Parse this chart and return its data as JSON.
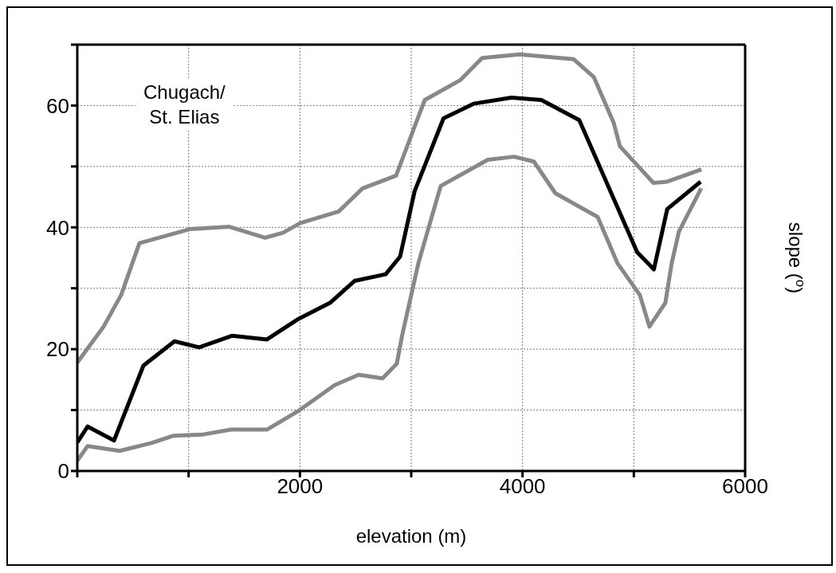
{
  "chart_data": {
    "type": "line",
    "xlabel": "elevation (m)",
    "ylabel": "slope ($^{o}$)",
    "annotations": [
      "Chugach/\nSt. Elias"
    ],
    "xlim": [
      0,
      6000
    ],
    "xticks": [
      {
        "value": 0,
        "label": null
      },
      {
        "value": 1000,
        "label": null
      },
      2000,
      {
        "value": 3000,
        "label": null
      },
      4000,
      {
        "value": 5000,
        "label": null
      },
      6000
    ],
    "ylim": [
      0,
      70
    ],
    "yticks": [
      0,
      {
        "value": 10,
        "label": null
      },
      20,
      {
        "value": 30,
        "label": null
      },
      40,
      {
        "value": 50,
        "label": null
      },
      60,
      {
        "value": 70,
        "label": null
      }
    ],
    "grid": true,
    "legend": false,
    "marker": "none",
    "line_style": "solid",
    "series": [
      {
        "color": "#888888",
        "x": [
          0,
          236,
          394,
          558,
          1009,
          1367,
          1689,
          1847,
          2004,
          2348,
          2563,
          2864,
          3121,
          3443,
          3637,
          3973,
          4460,
          4640,
          4820,
          4875,
          5176,
          5300,
          5607
        ],
        "values": [
          17.8,
          23.7,
          28.9,
          37.4,
          39.7,
          40.1,
          38.3,
          39.1,
          40.7,
          42.6,
          46.4,
          48.5,
          60.9,
          64.2,
          67.8,
          68.4,
          67.6,
          64.7,
          57.1,
          53.3,
          47.3,
          47.5,
          49.5
        ]
      },
      {
        "color": "#888888",
        "x": [
          0,
          93,
          380,
          666,
          866,
          1131,
          1382,
          1704,
          1990,
          2312,
          2527,
          2742,
          2870,
          2920,
          3064,
          3265,
          3687,
          3923,
          4102,
          4295,
          4675,
          4853,
          5054,
          5140,
          5283,
          5340,
          5405,
          5605
        ],
        "values": [
          1.7,
          4.1,
          3.3,
          4.6,
          5.8,
          6,
          6.8,
          6.8,
          9.9,
          14.1,
          15.8,
          15.2,
          17.6,
          22.4,
          34.1,
          46.8,
          51.1,
          51.6,
          50.8,
          45.6,
          41.7,
          34.1,
          28.9,
          23.7,
          27.6,
          34.1,
          39.3,
          46.4
        ]
      },
      {
        "color": "#000000",
        "x": [
          0,
          93,
          330,
          594,
          873,
          1095,
          1389,
          1704,
          1990,
          2270,
          2490,
          2770,
          2900,
          3030,
          3290,
          3560,
          3900,
          4170,
          4510,
          5030,
          5180,
          5300,
          5600
        ],
        "values": [
          4.7,
          7.3,
          5,
          17.3,
          21.3,
          20.3,
          22.2,
          21.6,
          25,
          27.6,
          31.2,
          32.3,
          35.2,
          45.9,
          57.9,
          60.3,
          61.3,
          60.9,
          57.6,
          35.9,
          33.1,
          43,
          47.5
        ]
      }
    ]
  }
}
